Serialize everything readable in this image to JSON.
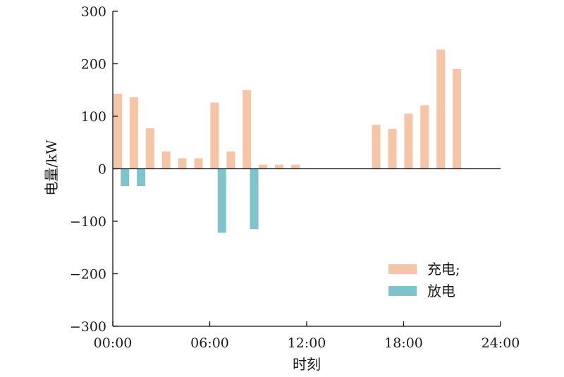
{
  "chart_data": {
    "type": "bar",
    "xlabel": "时刻",
    "ylabel": "电量/kW",
    "ylim": [
      -300,
      300
    ],
    "yticks": [
      300,
      200,
      100,
      0,
      -100,
      -200,
      -300
    ],
    "ytick_labels": [
      "300",
      "200",
      "100",
      "0",
      "−100",
      "−200",
      "−300"
    ],
    "xlim": [
      0,
      24
    ],
    "xticks": [
      0,
      6,
      12,
      18,
      24
    ],
    "xtick_labels": [
      "00:00",
      "06:00",
      "12:00",
      "18:00",
      "24:00"
    ],
    "legend_position": "bottom-right",
    "series": [
      {
        "name": "充电;",
        "color": "#f5c5a8",
        "points": [
          {
            "hour": 0,
            "value": 143
          },
          {
            "hour": 1,
            "value": 136
          },
          {
            "hour": 2,
            "value": 77
          },
          {
            "hour": 3,
            "value": 33
          },
          {
            "hour": 4,
            "value": 20
          },
          {
            "hour": 5,
            "value": 20
          },
          {
            "hour": 6,
            "value": 126
          },
          {
            "hour": 7,
            "value": 33
          },
          {
            "hour": 8,
            "value": 150
          },
          {
            "hour": 9,
            "value": 8
          },
          {
            "hour": 10,
            "value": 8
          },
          {
            "hour": 11,
            "value": 8
          },
          {
            "hour": 16,
            "value": 84
          },
          {
            "hour": 17,
            "value": 76
          },
          {
            "hour": 18,
            "value": 105
          },
          {
            "hour": 19,
            "value": 121
          },
          {
            "hour": 20,
            "value": 227
          },
          {
            "hour": 21,
            "value": 190
          }
        ]
      },
      {
        "name": "放电",
        "color": "#7fc3cc",
        "points": [
          {
            "hour": 0,
            "value": -33
          },
          {
            "hour": 1,
            "value": -33
          },
          {
            "hour": 6,
            "value": -122
          },
          {
            "hour": 8,
            "value": -115
          }
        ]
      }
    ]
  }
}
